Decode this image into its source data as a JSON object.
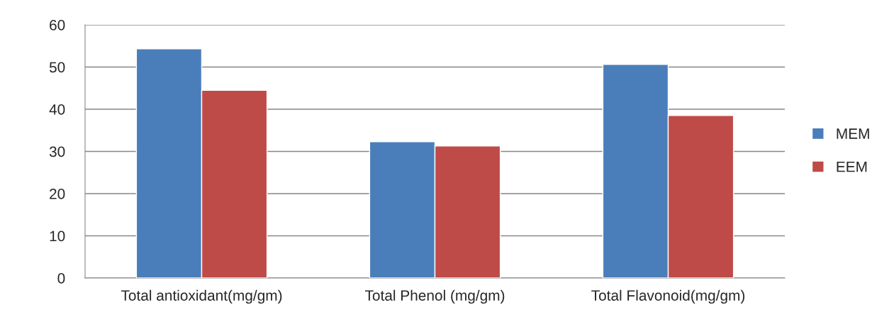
{
  "chart_data": {
    "type": "bar",
    "categories": [
      "Total antioxidant(mg/gm)",
      "Total Phenol (mg/gm)",
      "Total Flavonoid(mg/gm)"
    ],
    "series": [
      {
        "name": "MEM",
        "color": "#4a7ebb",
        "values": [
          54.3,
          32.3,
          50.6
        ]
      },
      {
        "name": "EEM",
        "color": "#be4b48",
        "values": [
          44.5,
          31.3,
          38.5
        ]
      }
    ],
    "ylim": [
      0,
      60
    ],
    "yticks": [
      0,
      10,
      20,
      30,
      40,
      50,
      60
    ],
    "grid": "y",
    "legend": "right"
  }
}
